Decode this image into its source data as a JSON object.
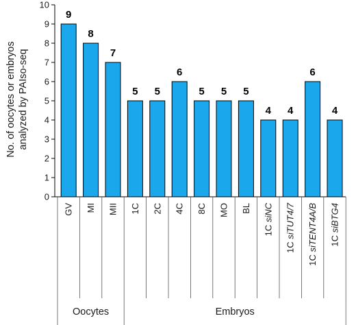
{
  "chart_data": {
    "type": "bar",
    "categories": [
      {
        "label": "GV",
        "italic_suffix": ""
      },
      {
        "label": "MI",
        "italic_suffix": ""
      },
      {
        "label": "MII",
        "italic_suffix": ""
      },
      {
        "label": "1C",
        "italic_suffix": ""
      },
      {
        "label": "2C",
        "italic_suffix": ""
      },
      {
        "label": "4C",
        "italic_suffix": ""
      },
      {
        "label": "8C",
        "italic_suffix": ""
      },
      {
        "label": "MO",
        "italic_suffix": ""
      },
      {
        "label": "BL",
        "italic_suffix": ""
      },
      {
        "label": "1C ",
        "italic_suffix": "siNC"
      },
      {
        "label": "1C ",
        "italic_suffix": "siTUT4/7"
      },
      {
        "label": "1C ",
        "italic_suffix": "siTENT4A/B"
      },
      {
        "label": "1C ",
        "italic_suffix": "siBTG4"
      }
    ],
    "values": [
      9,
      8,
      7,
      5,
      5,
      6,
      5,
      5,
      5,
      4,
      4,
      6,
      4
    ],
    "data_labels": [
      "9",
      "8",
      "7",
      "5",
      "5",
      "6",
      "5",
      "5",
      "5",
      "4",
      "4",
      "6",
      "4"
    ],
    "ylabel_lines": [
      "No. of oocytes or embryos",
      "analyzed by PAIso-seq"
    ],
    "ylim": [
      0,
      10
    ],
    "yticks": [
      "0",
      "1",
      "2",
      "3",
      "4",
      "5",
      "6",
      "7",
      "8",
      "9",
      "10"
    ],
    "groups": [
      {
        "label": "Oocytes",
        "first": 0,
        "last": 2
      },
      {
        "label": "Embryos",
        "first": 3,
        "last": 12
      }
    ],
    "grid": false,
    "bar_color": "#1aa7ec",
    "bar_edge_color": "#000000"
  }
}
